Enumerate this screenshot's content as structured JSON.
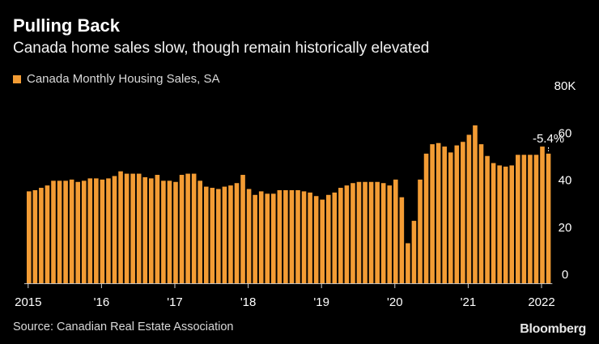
{
  "header": {
    "title": "Pulling Back",
    "subtitle": "Canada home sales slow, though remain historically elevated"
  },
  "footer": {
    "source": "Source: Canadian Real Estate Association",
    "brand": "Bloomberg"
  },
  "colors": {
    "bar": "#f39c34",
    "background": "#000000",
    "text": "#ffffff",
    "axis": "#cccccc"
  },
  "chart_data": {
    "type": "bar",
    "title": "Pulling Back",
    "subtitle": "Canada home sales slow, though remain historically elevated",
    "series": [
      {
        "name": "Canada Monthly Housing Sales, SA",
        "values": [
          39000,
          39500,
          40500,
          41500,
          43500,
          43500,
          43500,
          44000,
          43000,
          43500,
          44500,
          44500,
          44000,
          44500,
          45500,
          47500,
          46500,
          46500,
          46500,
          45000,
          44500,
          46000,
          43500,
          43500,
          43000,
          46000,
          46500,
          46500,
          43500,
          41000,
          40500,
          40000,
          41000,
          41500,
          42500,
          46000,
          40000,
          37500,
          39000,
          38000,
          38000,
          39500,
          39500,
          39500,
          39500,
          39000,
          38500,
          37000,
          35500,
          37500,
          38500,
          40500,
          41500,
          42500,
          43000,
          43000,
          43000,
          43000,
          42500,
          41500,
          44000,
          36500,
          17000,
          26500,
          44000,
          55000,
          59000,
          59500,
          58000,
          55500,
          58500,
          60000,
          63000,
          67000,
          59000,
          54000,
          51000,
          50000,
          49500,
          50000,
          54500,
          54500,
          54500,
          54500,
          58000,
          55000
        ]
      }
    ],
    "x_start": "2015-01",
    "x_ticks": [
      "2015",
      "'16",
      "'17",
      "'18",
      "'19",
      "'20",
      "'21",
      "2022"
    ],
    "y_ticks": [
      "0",
      "20",
      "40",
      "60",
      "80K"
    ],
    "ylim": [
      0,
      80000
    ],
    "legend": [
      "Canada Monthly Housing Sales, SA"
    ],
    "legend_position": "top-left",
    "annotations": [
      {
        "text": "-5.4%",
        "target": "last"
      }
    ],
    "grid": false
  }
}
